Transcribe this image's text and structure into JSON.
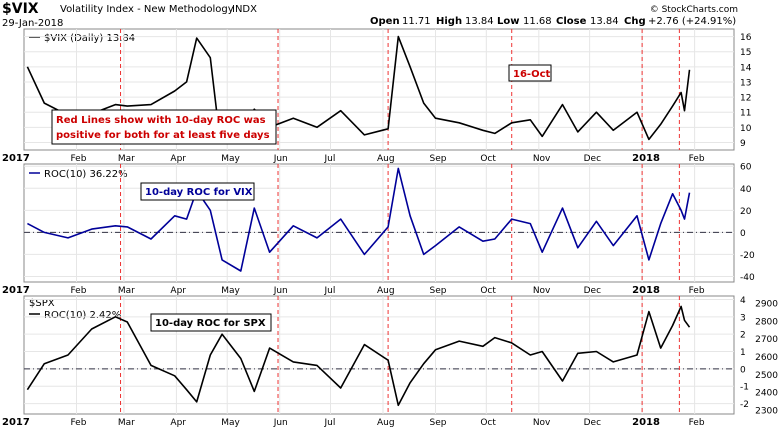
{
  "header": {
    "symbol": "$VIX",
    "name": "Volatility Index - New Methodology",
    "exchange": "INDX",
    "date": "29-Jan-2018",
    "open_label": "Open",
    "open": "11.71",
    "high_label": "High",
    "high": "13.84",
    "low_label": "Low",
    "low": "11.68",
    "close_label": "Close",
    "close": "13.84",
    "chg_label": "Chg",
    "chg": "+2.76 (+24.91%)",
    "brand": "© StockCharts.com"
  },
  "x_axis": {
    "year_start_label": "2017",
    "year_mid_label": "2018",
    "months": [
      "Feb",
      "Mar",
      "Apr",
      "May",
      "Jun",
      "Jul",
      "Aug",
      "Sep",
      "Oct",
      "Nov",
      "Dec",
      "Jan",
      "Feb"
    ]
  },
  "red_lines_dates": [
    "2017-02-27",
    "2017-05-31",
    "2017-08-04",
    "2017-10-16",
    "2018-01-01",
    "2018-01-23"
  ],
  "colors": {
    "vix": "#000000",
    "roc_vix": "#000099",
    "roc_spx": "#000000",
    "red_line": "#ee3333",
    "annotation_text": "#cc0000",
    "annotation_blue": "#000099"
  },
  "chart_data": [
    {
      "type": "line",
      "panel": "vix",
      "legend": "$VIX (Daily) 13.84",
      "ylim": [
        8.5,
        16.5
      ],
      "yticks": [
        9,
        10,
        11,
        12,
        13,
        14,
        15,
        16
      ],
      "x": [
        "2017-01-03",
        "2017-01-13",
        "2017-01-27",
        "2017-02-10",
        "2017-02-24",
        "2017-03-03",
        "2017-03-17",
        "2017-03-31",
        "2017-04-07",
        "2017-04-13",
        "2017-04-21",
        "2017-04-25",
        "2017-05-09",
        "2017-05-17",
        "2017-05-26",
        "2017-06-09",
        "2017-06-23",
        "2017-07-07",
        "2017-07-21",
        "2017-08-04",
        "2017-08-10",
        "2017-08-17",
        "2017-08-25",
        "2017-09-01",
        "2017-09-15",
        "2017-09-29",
        "2017-10-06",
        "2017-10-16",
        "2017-10-27",
        "2017-11-03",
        "2017-11-15",
        "2017-11-24",
        "2017-12-05",
        "2017-12-15",
        "2017-12-29",
        "2018-01-05",
        "2018-01-12",
        "2018-01-19",
        "2018-01-24",
        "2018-01-26",
        "2018-01-29"
      ],
      "y": [
        14.0,
        11.6,
        10.8,
        10.9,
        11.5,
        11.4,
        11.5,
        12.4,
        13.0,
        15.9,
        14.6,
        10.8,
        9.8,
        11.2,
        10.0,
        10.6,
        10.0,
        11.1,
        9.5,
        9.9,
        16.0,
        14.0,
        11.6,
        10.6,
        10.3,
        9.8,
        9.6,
        10.3,
        10.5,
        9.4,
        11.5,
        9.7,
        11.0,
        9.8,
        11.0,
        9.2,
        10.2,
        11.4,
        12.3,
        11.1,
        13.8
      ]
    },
    {
      "type": "line",
      "panel": "roc_vix",
      "legend": "ROC(10) 36.22%",
      "ylim": [
        -45,
        62
      ],
      "yticks": [
        -40,
        -20,
        0,
        20,
        40,
        60
      ],
      "x": [
        "2017-01-03",
        "2017-01-13",
        "2017-01-27",
        "2017-02-10",
        "2017-02-24",
        "2017-03-03",
        "2017-03-17",
        "2017-03-31",
        "2017-04-07",
        "2017-04-13",
        "2017-04-21",
        "2017-04-28",
        "2017-05-09",
        "2017-05-17",
        "2017-05-26",
        "2017-06-09",
        "2017-06-23",
        "2017-07-07",
        "2017-07-21",
        "2017-08-04",
        "2017-08-10",
        "2017-08-17",
        "2017-08-25",
        "2017-09-01",
        "2017-09-15",
        "2017-09-29",
        "2017-10-06",
        "2017-10-16",
        "2017-10-27",
        "2017-11-03",
        "2017-11-15",
        "2017-11-24",
        "2017-12-05",
        "2017-12-15",
        "2017-12-29",
        "2018-01-05",
        "2018-01-12",
        "2018-01-19",
        "2018-01-24",
        "2018-01-26",
        "2018-01-29"
      ],
      "y": [
        8,
        0,
        -5,
        3,
        6,
        5,
        -6,
        15,
        12,
        38,
        20,
        -25,
        -35,
        22,
        -18,
        6,
        -5,
        12,
        -20,
        5,
        58,
        15,
        -20,
        -12,
        5,
        -8,
        -6,
        12,
        8,
        -18,
        22,
        -14,
        10,
        -12,
        15,
        -25,
        8,
        35,
        20,
        12,
        36
      ]
    },
    {
      "type": "line",
      "panel": "roc_spx",
      "legend_symbol": "$SPX",
      "legend": "ROC(10) 2.42%",
      "ylim": [
        -2.6,
        4.2
      ],
      "yticks": [
        -2,
        -1,
        0,
        1,
        2,
        3,
        4
      ],
      "right_ticks": [
        "2900",
        "2800",
        "2700",
        "2600",
        "2500",
        "2400",
        "2300"
      ],
      "x": [
        "2017-01-03",
        "2017-01-13",
        "2017-01-27",
        "2017-02-10",
        "2017-02-24",
        "2017-03-03",
        "2017-03-17",
        "2017-03-31",
        "2017-04-07",
        "2017-04-13",
        "2017-04-21",
        "2017-04-28",
        "2017-05-09",
        "2017-05-17",
        "2017-05-26",
        "2017-06-09",
        "2017-06-23",
        "2017-07-07",
        "2017-07-21",
        "2017-08-04",
        "2017-08-10",
        "2017-08-17",
        "2017-08-25",
        "2017-09-01",
        "2017-09-15",
        "2017-09-29",
        "2017-10-06",
        "2017-10-16",
        "2017-10-27",
        "2017-11-03",
        "2017-11-15",
        "2017-11-24",
        "2017-12-05",
        "2017-12-15",
        "2017-12-29",
        "2018-01-05",
        "2018-01-12",
        "2018-01-19",
        "2018-01-24",
        "2018-01-26",
        "2018-01-29"
      ],
      "y": [
        -1.2,
        0.3,
        0.8,
        2.3,
        3.0,
        2.7,
        0.2,
        -0.4,
        -1.2,
        -1.9,
        0.8,
        2.0,
        0.6,
        -1.3,
        1.2,
        0.4,
        0.2,
        -1.1,
        1.4,
        0.5,
        -2.1,
        -0.8,
        0.3,
        1.1,
        1.6,
        1.3,
        1.8,
        1.5,
        0.8,
        1.0,
        -0.7,
        0.9,
        1.0,
        0.4,
        0.8,
        3.3,
        1.2,
        2.5,
        3.6,
        2.8,
        2.4
      ]
    }
  ],
  "annotations": {
    "red_lines_note": "Red Lines show with 10-day ROC was positive for both for at least five days",
    "oct16": "16-Oct",
    "roc_vix_note": "10-day ROC for VIX",
    "roc_spx_note": "10-day ROC for SPX"
  }
}
